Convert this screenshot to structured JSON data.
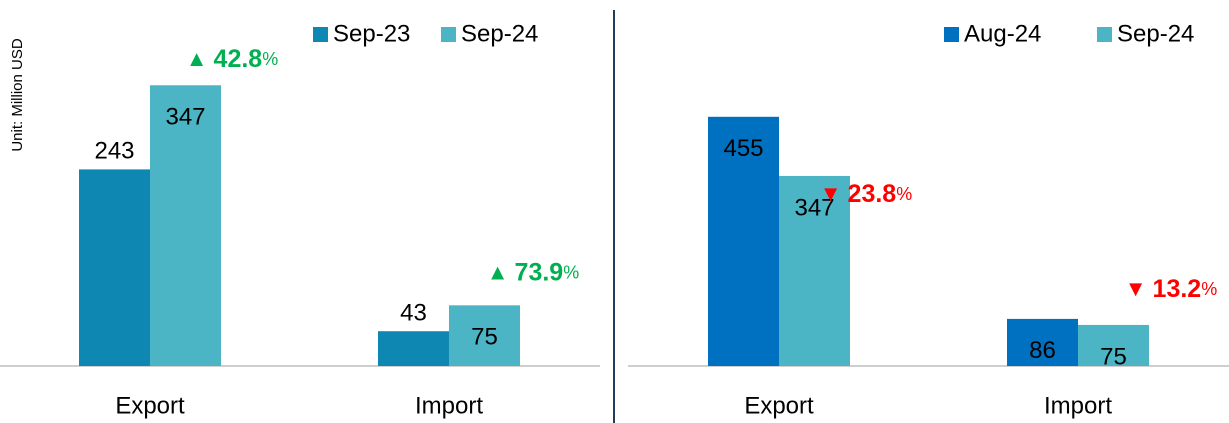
{
  "chart_data": [
    {
      "type": "bar",
      "y_label": "Unit: Million USD",
      "categories": [
        "Export",
        "Import"
      ],
      "series": [
        {
          "name": "Sep-23",
          "color": "#0e87b3",
          "values": [
            243,
            43
          ],
          "label_position": "outside"
        },
        {
          "name": "Sep-24",
          "color": "#4bb5c6",
          "values": [
            347,
            75
          ],
          "label_position": "inside"
        }
      ],
      "ylim": [
        0,
        440
      ],
      "annotations": [
        {
          "symbol": "▲",
          "value": 42.8,
          "unit": "%",
          "color": "#00b050"
        },
        {
          "symbol": "▲",
          "value": 73.9,
          "unit": "%",
          "color": "#00b050"
        }
      ]
    },
    {
      "type": "bar",
      "categories": [
        "Export",
        "Import"
      ],
      "series": [
        {
          "name": "Aug-24",
          "color": "#0070c0",
          "values": [
            455,
            86
          ],
          "label_position": "inside"
        },
        {
          "name": "Sep-24",
          "color": "#4bb5c6",
          "values": [
            347,
            75
          ],
          "label_position": "inside"
        }
      ],
      "ylim": [
        0,
        650
      ],
      "annotations": [
        {
          "symbol": "▼",
          "value": 23.8,
          "unit": "%",
          "color": "#ff0000"
        },
        {
          "symbol": "▼",
          "value": 13.2,
          "unit": "%",
          "color": "#ff0000"
        }
      ]
    }
  ]
}
